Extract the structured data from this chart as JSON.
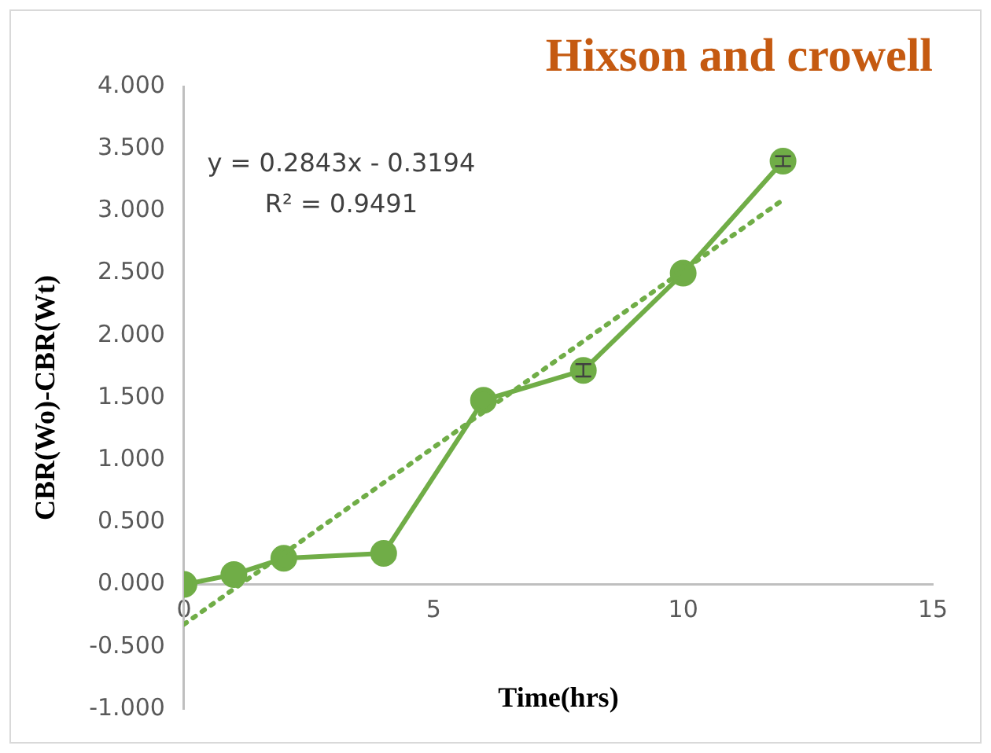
{
  "chart_data": {
    "type": "line",
    "title": "Hixson and crowell",
    "xlabel": "Time(hrs)",
    "ylabel": "CBR(Wo)-CBR(Wt)",
    "x": [
      0,
      1,
      2,
      4,
      6,
      8,
      10,
      12
    ],
    "series": [
      {
        "type": "line",
        "color": "#70ad47",
        "values": [
          0,
          0.08,
          0.21,
          0.25,
          1.48,
          1.72,
          2.5,
          3.4
        ],
        "errors": [
          null,
          null,
          null,
          null,
          null,
          0.05,
          null,
          0.04
        ],
        "marker": "circle",
        "line_style": "solid"
      },
      {
        "type": "line",
        "color": "#70ad47",
        "x": [
          0,
          12
        ],
        "values": [
          -0.32,
          3.09
        ],
        "marker": "none",
        "line_style": "dotted"
      }
    ],
    "annotations": [
      "y = 0.2843x - 0.3194",
      "R² = 0.9491"
    ],
    "xlim": [
      0,
      15
    ],
    "xticks": [
      0,
      5,
      10,
      15
    ],
    "ylim": [
      -1,
      4
    ],
    "yticks": [
      {
        "value": -1,
        "label": "-1.000"
      },
      {
        "value": -0.5,
        "label": "-0.500"
      },
      {
        "value": 0,
        "label": "0.000"
      },
      {
        "value": 0.5,
        "label": "0.500"
      },
      {
        "value": 1,
        "label": "1.000"
      },
      {
        "value": 1.5,
        "label": "1.500"
      },
      {
        "value": 2,
        "label": "2.000"
      },
      {
        "value": 2.5,
        "label": "2.500"
      },
      {
        "value": 3,
        "label": "3.000"
      },
      {
        "value": 3.5,
        "label": "3.500"
      },
      {
        "value": 4,
        "label": "4.000"
      }
    ],
    "grid": false,
    "legend": false
  }
}
